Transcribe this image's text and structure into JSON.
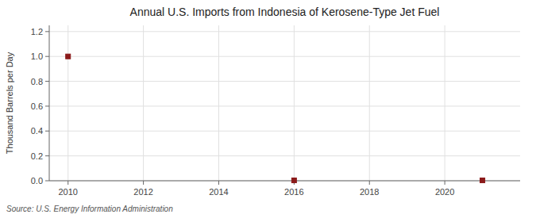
{
  "chart_data": {
    "type": "scatter",
    "title": "Annual U.S. Imports from Indonesia of Kerosene-Type Jet Fuel",
    "y_label": "Thousand Barrels per Day",
    "annotations": [
      "Source: U.S. Energy Information Administration"
    ],
    "x": [
      2010,
      2016,
      2021
    ],
    "values": [
      1.0,
      0.003,
      0.003
    ],
    "xlim": [
      2009.5,
      2022.0
    ],
    "ylim": [
      0.0,
      1.25
    ],
    "xticks": [
      2010,
      2012,
      2014,
      2016,
      2018,
      2020
    ],
    "yticks": [
      {
        "value": 0.0,
        "label": "0.0"
      },
      0.2,
      0.4,
      0.6,
      0.8,
      {
        "value": 1.0,
        "label": "1.0"
      },
      1.2
    ],
    "marker": "square",
    "color": "#8b1a1a",
    "grid": true
  }
}
